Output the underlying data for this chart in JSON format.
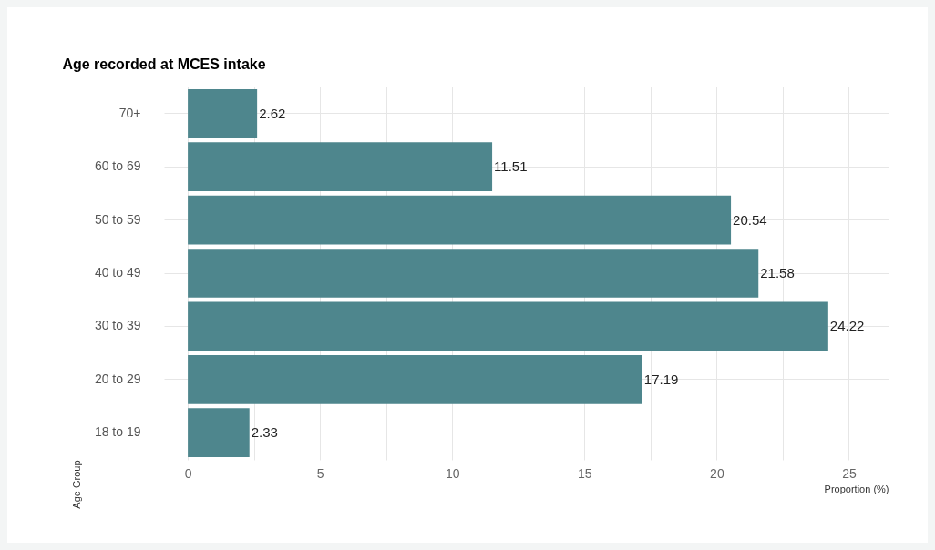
{
  "chart_data": {
    "type": "bar",
    "orientation": "horizontal",
    "title": "Age recorded at MCES intake",
    "xlabel": "Proportion (%)",
    "ylabel": "Age Group",
    "categories": [
      "70+",
      "60 to 69",
      "50 to 59",
      "40 to 49",
      "30 to 39",
      "20 to 29",
      "18 to 19"
    ],
    "values": [
      2.62,
      11.51,
      20.54,
      21.58,
      24.22,
      17.19,
      2.33
    ],
    "color": "#4e868d",
    "data_labels": true,
    "grid": true,
    "xlim": [
      -0.9,
      26.5
    ],
    "xticks": [
      0,
      {
        "value": 2.5,
        "label": null
      },
      5,
      {
        "value": 7.5,
        "label": null
      },
      10,
      {
        "value": 12.5,
        "label": null
      },
      15,
      {
        "value": 17.5,
        "label": null
      },
      20,
      {
        "value": 22.5,
        "label": null
      },
      25
    ]
  }
}
